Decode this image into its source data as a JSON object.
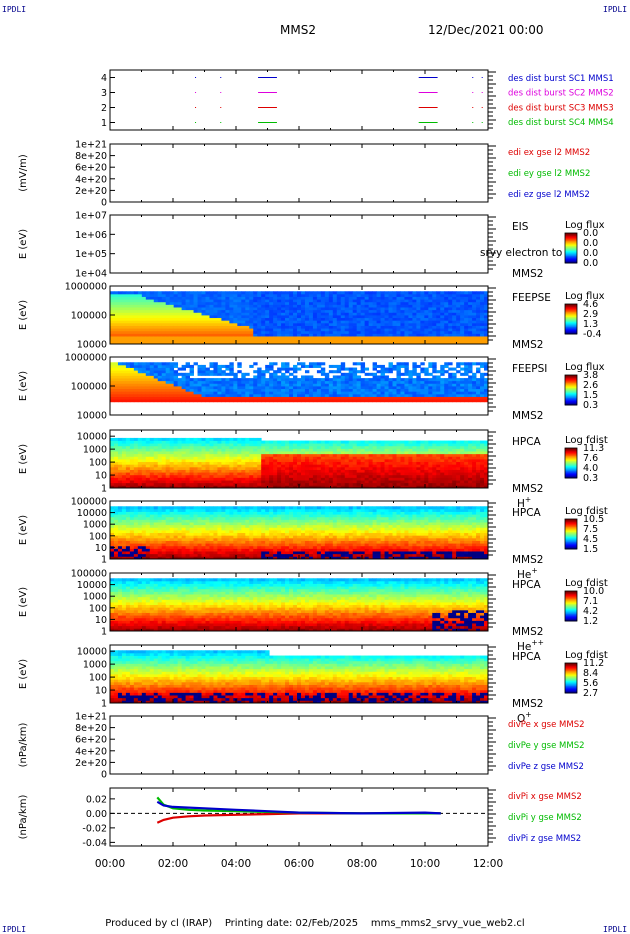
{
  "header": {
    "title": "MMS2",
    "datetime": "12/Dec/2021 00:00",
    "corner_tag": "IPDLI"
  },
  "footer": {
    "producer": "Produced by cl (IRAP)",
    "printing": "Printing date: 02/Feb/2025",
    "file": "mms_mms2_srvy_vue_web2.cl"
  },
  "colors": {
    "blue": "#0000cc",
    "red": "#dd0000",
    "green": "#00bb00",
    "magenta": "#dd00dd",
    "dashed": "#000000"
  },
  "chart_data": [
    {
      "type": "line",
      "panel": "des-dist-burst",
      "yticks": [
        "1",
        "2",
        "3",
        "4"
      ],
      "ylim": [
        0.5,
        4.5
      ],
      "series": [
        {
          "name": "des dist burst SC1 MMS1",
          "color": "#0000cc",
          "level": 4,
          "marks_hours": [
            [
              4.7,
              5.3
            ],
            [
              9.8,
              10.4
            ]
          ]
        },
        {
          "name": "des dist burst SC2 MMS2",
          "color": "#dd00dd",
          "level": 3,
          "marks_hours": [
            [
              4.7,
              5.3
            ],
            [
              9.8,
              10.4
            ]
          ]
        },
        {
          "name": "des dist burst SC3 MMS3",
          "color": "#dd0000",
          "level": 2,
          "marks_hours": [
            [
              4.7,
              5.3
            ],
            [
              9.8,
              10.4
            ]
          ]
        },
        {
          "name": "des dist burst SC4 MMS4",
          "color": "#00bb00",
          "level": 1,
          "marks_hours": [
            [
              4.7,
              5.3
            ],
            [
              9.8,
              10.4
            ]
          ]
        }
      ]
    },
    {
      "type": "line",
      "panel": "edi",
      "ylabel": "(mV/m)",
      "yticks": [
        "0",
        "2e+20",
        "4e+20",
        "6e+20",
        "8e+20",
        "1e+21"
      ],
      "ylim": [
        0,
        1e+21
      ],
      "series": [
        {
          "name": "edi ex gse l2 MMS2",
          "color": "#dd0000"
        },
        {
          "name": "edi ey gse l2 MMS2",
          "color": "#00bb00"
        },
        {
          "name": "edi ez gse l2 MMS2",
          "color": "#0000cc"
        }
      ]
    },
    {
      "type": "heatmap",
      "panel": "eis",
      "ylabel": "E (eV)",
      "yscale": "log",
      "yticks": [
        "1e+04",
        "1e+05",
        "1e+06",
        "1e+07"
      ],
      "ylim": [
        10000.0,
        10000000.0
      ],
      "label_lines": [
        "EIS",
        "MMS2"
      ],
      "overlay_text": "srvy electron to",
      "colorbar": {
        "title": "Log flux",
        "ticks": [
          "0.0",
          "0.0",
          "0.0",
          "0.0"
        ]
      }
    },
    {
      "type": "heatmap",
      "panel": "feeps-e",
      "ylabel": "E (eV)",
      "yscale": "log",
      "yticks": [
        "10000",
        "100000",
        "1000000"
      ],
      "ylim": [
        10000,
        1000000
      ],
      "label_lines": [
        "FEEPSE",
        "MMS2"
      ],
      "colorbar": {
        "title": "Log flux",
        "ticks": [
          "4.6",
          "2.9",
          "1.3",
          "-0.4"
        ]
      }
    },
    {
      "type": "heatmap",
      "panel": "feeps-i",
      "ylabel": "E (eV)",
      "yscale": "log",
      "yticks": [
        "10000",
        "100000",
        "1000000"
      ],
      "ylim": [
        10000,
        1000000
      ],
      "label_lines": [
        "FEEPSI",
        "MMS2"
      ],
      "colorbar": {
        "title": "Log flux",
        "ticks": [
          "3.8",
          "2.6",
          "1.5",
          "0.3"
        ]
      }
    },
    {
      "type": "heatmap",
      "panel": "hpca-h",
      "ylabel": "E (eV)",
      "yscale": "log",
      "yticks": [
        "1",
        "10",
        "100",
        "1000",
        "10000"
      ],
      "ylim": [
        1,
        30000
      ],
      "label_lines": [
        "HPCA",
        "MMS2"
      ],
      "species": "H",
      "species_sup": "+",
      "colorbar": {
        "title": "Log fdist",
        "ticks": [
          "11.3",
          "7.6",
          "4.0",
          "0.3"
        ]
      }
    },
    {
      "type": "heatmap",
      "panel": "hpca-he",
      "ylabel": "E (eV)",
      "yscale": "log",
      "yticks": [
        "1",
        "10",
        "100",
        "1000",
        "10000",
        "100000"
      ],
      "ylim": [
        1,
        100000
      ],
      "label_lines": [
        "HPCA",
        "MMS2"
      ],
      "species": "He",
      "species_sup": "+",
      "colorbar": {
        "title": "Log fdist",
        "ticks": [
          "10.5",
          "7.5",
          "4.5",
          "1.5"
        ]
      }
    },
    {
      "type": "heatmap",
      "panel": "hpca-hepp",
      "ylabel": "E (eV)",
      "yscale": "log",
      "yticks": [
        "1",
        "10",
        "100",
        "1000",
        "10000",
        "100000"
      ],
      "ylim": [
        1,
        100000
      ],
      "label_lines": [
        "HPCA",
        "MMS2"
      ],
      "species": "He",
      "species_sup": "++",
      "colorbar": {
        "title": "Log fdist",
        "ticks": [
          "10.0",
          "7.1",
          "4.2",
          "1.2"
        ]
      }
    },
    {
      "type": "heatmap",
      "panel": "hpca-o",
      "ylabel": "E (eV)",
      "yscale": "log",
      "yticks": [
        "1",
        "10",
        "100",
        "1000",
        "10000"
      ],
      "ylim": [
        1,
        30000
      ],
      "label_lines": [
        "HPCA",
        "MMS2"
      ],
      "species": "O",
      "species_sup": "+",
      "colorbar": {
        "title": "Log fdist",
        "ticks": [
          "11.2",
          "8.4",
          "5.6",
          "2.7"
        ]
      }
    },
    {
      "type": "line",
      "panel": "divpe",
      "ylabel": "(nPa/km)",
      "yticks": [
        "0",
        "2e+20",
        "4e+20",
        "6e+20",
        "8e+20",
        "1e+21"
      ],
      "ylim": [
        0,
        1e+21
      ],
      "series": [
        {
          "name": "divPe x gse MMS2",
          "color": "#dd0000"
        },
        {
          "name": "divPe y gse MMS2",
          "color": "#00bb00"
        },
        {
          "name": "divPe z gse MMS2",
          "color": "#0000cc"
        }
      ]
    },
    {
      "type": "line",
      "panel": "divpi",
      "ylabel": "(nPa/km)",
      "yticks": [
        "-0.04",
        "-0.02",
        "0.00",
        "0.02"
      ],
      "ylim": [
        -0.045,
        0.035
      ],
      "series": [
        {
          "name": "divPi x gse MMS2",
          "color": "#dd0000",
          "x": [
            1.5,
            1.7,
            2,
            2.5,
            3,
            4,
            5,
            6,
            8,
            10,
            10.5
          ],
          "y": [
            -0.013,
            -0.009,
            -0.006,
            -0.004,
            -0.003,
            -0.002,
            -0.001,
            0,
            0,
            0,
            0
          ]
        },
        {
          "name": "divPi y gse MMS2",
          "color": "#00bb00",
          "x": [
            1.5,
            1.7,
            2,
            2.5,
            3,
            4,
            5,
            6,
            8,
            10,
            10.5
          ],
          "y": [
            0.022,
            0.012,
            0.007,
            0.005,
            0.004,
            0.003,
            0.002,
            0.001,
            0,
            0,
            0
          ]
        },
        {
          "name": "divPi z gse MMS2",
          "color": "#0000cc",
          "x": [
            1.5,
            1.7,
            2,
            2.5,
            3,
            4,
            5,
            6,
            8,
            10,
            10.5
          ],
          "y": [
            0.016,
            0.011,
            0.009,
            0.008,
            0.007,
            0.005,
            0.003,
            0.001,
            0,
            0.001,
            0
          ]
        }
      ]
    }
  ],
  "xaxis": {
    "ticks": [
      "00:00",
      "02:00",
      "04:00",
      "06:00",
      "08:00",
      "10:00",
      "12:00"
    ],
    "xlim": [
      0,
      12
    ]
  }
}
